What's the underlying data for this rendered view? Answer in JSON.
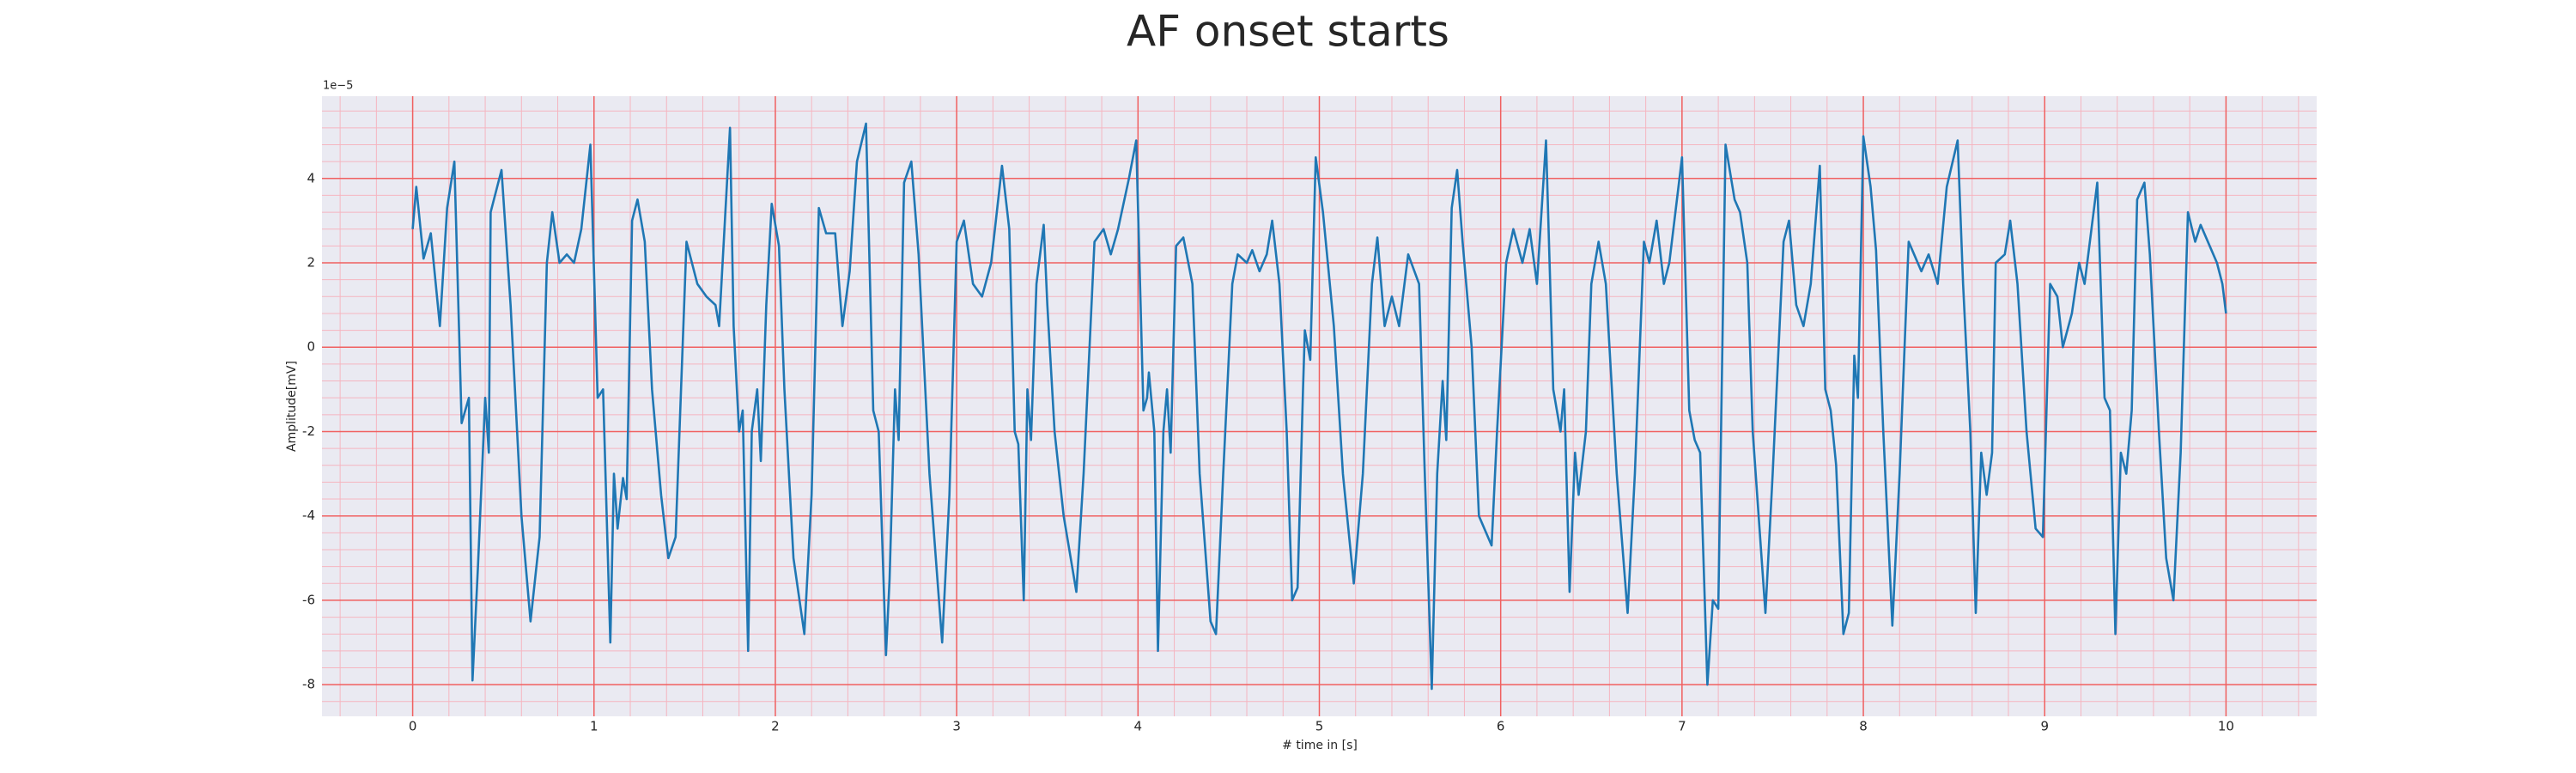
{
  "chart_data": {
    "type": "line",
    "title": "AF onset starts",
    "xlabel": "# time in [s]",
    "ylabel": "Amplitude[mV]",
    "y_offset_label": "1e−5",
    "xlim": [
      -0.5,
      10.5
    ],
    "ylim": [
      -8.75,
      5.95
    ],
    "xticks": [
      0,
      1,
      2,
      3,
      4,
      5,
      6,
      7,
      8,
      9,
      10
    ],
    "yticks": [
      -8,
      -6,
      -4,
      -2,
      0,
      2,
      4
    ],
    "grid": true,
    "minor_grid": {
      "x": 0.2,
      "y": 0.4
    },
    "x": [
      0,
      0.02,
      0.06,
      0.1,
      0.15,
      0.19,
      0.23,
      0.27,
      0.31,
      0.33,
      0.36,
      0.4,
      0.42,
      0.43,
      0.49,
      0.54,
      0.6,
      0.65,
      0.7,
      0.74,
      0.77,
      0.81,
      0.85,
      0.89,
      0.93,
      0.98,
      1.02,
      1.05,
      1.09,
      1.11,
      1.13,
      1.16,
      1.18,
      1.21,
      1.24,
      1.28,
      1.32,
      1.37,
      1.41,
      1.45,
      1.51,
      1.57,
      1.62,
      1.67,
      1.69,
      1.75,
      1.77,
      1.8,
      1.82,
      1.85,
      1.87,
      1.9,
      1.92,
      1.95,
      1.98,
      2.02,
      2.05,
      2.1,
      2.16,
      2.2,
      2.24,
      2.28,
      2.33,
      2.37,
      2.41,
      2.45,
      2.5,
      2.54,
      2.57,
      2.61,
      2.63,
      2.66,
      2.68,
      2.71,
      2.75,
      2.79,
      2.85,
      2.92,
      2.96,
      3.0,
      3.04,
      3.09,
      3.14,
      3.19,
      3.25,
      3.29,
      3.32,
      3.34,
      3.37,
      3.39,
      3.41,
      3.44,
      3.48,
      3.5,
      3.54,
      3.59,
      3.66,
      3.7,
      3.76,
      3.81,
      3.85,
      3.89,
      3.95,
      3.99,
      4.03,
      4.05,
      4.06,
      4.09,
      4.11,
      4.14,
      4.16,
      4.18,
      4.21,
      4.25,
      4.3,
      4.34,
      4.4,
      4.43,
      4.47,
      4.52,
      4.55,
      4.6,
      4.63,
      4.67,
      4.71,
      4.74,
      4.78,
      4.82,
      4.85,
      4.88,
      4.91,
      4.92,
      4.95,
      4.98,
      5.02,
      5.08,
      5.13,
      5.19,
      5.24,
      5.29,
      5.32,
      5.36,
      5.4,
      5.44,
      5.49,
      5.55,
      5.58,
      5.62,
      5.65,
      5.68,
      5.7,
      5.73,
      5.76,
      5.79,
      5.84,
      5.88,
      5.95,
      5.98,
      6.03,
      6.07,
      6.12,
      6.16,
      6.2,
      6.25,
      6.29,
      6.33,
      6.35,
      6.38,
      6.41,
      6.43,
      6.47,
      6.5,
      6.54,
      6.58,
      6.64,
      6.7,
      6.74,
      6.79,
      6.82,
      6.86,
      6.9,
      6.93,
      7.0,
      7.04,
      7.07,
      7.1,
      7.14,
      7.17,
      7.2,
      7.24,
      7.29,
      7.32,
      7.36,
      7.39,
      7.46,
      7.5,
      7.56,
      7.59,
      7.63,
      7.67,
      7.71,
      7.76,
      7.79,
      7.82,
      7.85,
      7.89,
      7.92,
      7.95,
      7.97,
      8.0,
      8.04,
      8.07,
      8.11,
      8.16,
      8.2,
      8.25,
      8.28,
      8.32,
      8.36,
      8.41,
      8.46,
      8.52,
      8.55,
      8.59,
      8.62,
      8.65,
      8.68,
      8.71,
      8.73,
      8.78,
      8.81,
      8.85,
      8.9,
      8.95,
      8.99,
      9.03,
      9.07,
      9.1,
      9.15,
      9.19,
      9.22,
      9.29,
      9.33,
      9.36,
      9.39,
      9.42,
      9.45,
      9.48,
      9.51,
      9.55,
      9.58,
      9.63,
      9.67,
      9.71,
      9.75,
      9.79,
      9.83,
      9.86,
      9.9,
      9.95,
      9.98,
      10.0
    ],
    "series": [
      {
        "name": "Amplitude",
        "color": "#1f77b4",
        "values": [
          2.8,
          3.8,
          2.1,
          2.7,
          0.5,
          3.3,
          4.4,
          -1.8,
          -1.2,
          -7.9,
          -5.2,
          -1.2,
          -2.5,
          3.2,
          4.2,
          1.0,
          -4,
          -6.5,
          -4.5,
          2,
          3.2,
          2.0,
          2.2,
          2.0,
          2.8,
          4.8,
          -1.2,
          -1.0,
          -7.0,
          -3.0,
          -4.3,
          -3.1,
          -3.6,
          3.0,
          3.5,
          2.5,
          -1,
          -3.5,
          -5.0,
          -4.5,
          2.5,
          1.5,
          1.2,
          1.0,
          0.5,
          5.2,
          0.5,
          -2.0,
          -1.5,
          -7.2,
          -2,
          -1,
          -2.7,
          1,
          3.4,
          2.4,
          -1,
          -5,
          -6.8,
          -3.5,
          3.3,
          2.7,
          2.7,
          0.5,
          1.8,
          4.4,
          5.3,
          -1.5,
          -2.0,
          -7.3,
          -5.5,
          -1,
          -2.2,
          3.9,
          4.4,
          2.2,
          -3,
          -7.0,
          -3.5,
          2.5,
          3.0,
          1.5,
          1.2,
          2,
          4.3,
          2.8,
          -2,
          -2.3,
          -6.0,
          -1,
          -2.2,
          1.5,
          2.9,
          1.0,
          -2,
          -4,
          -5.8,
          -3,
          2.5,
          2.8,
          2.2,
          2.8,
          4.0,
          4.9,
          -1.5,
          -1.2,
          -0.6,
          -2,
          -7.2,
          -2,
          -1,
          -2.5,
          2.4,
          2.6,
          1.5,
          -3,
          -6.5,
          -6.8,
          -3,
          1.5,
          2.2,
          2.0,
          2.3,
          1.8,
          2.2,
          3,
          1.5,
          -2,
          -6,
          -5.7,
          -1,
          0.4,
          -0.3,
          4.5,
          3.2,
          0.5,
          -3,
          -5.6,
          -3,
          1.5,
          2.6,
          0.5,
          1.2,
          0.5,
          2.2,
          1.5,
          -2.8,
          -8.1,
          -3,
          -0.8,
          -2.2,
          3.3,
          4.2,
          2.5,
          0,
          -4,
          -4.7,
          -2,
          2.0,
          2.8,
          2.0,
          2.8,
          1.5,
          4.9,
          -1,
          -2,
          -1,
          -5.8,
          -2.5,
          -3.5,
          -2,
          1.5,
          2.5,
          1.5,
          -3,
          -6.3,
          -3,
          2.5,
          2.0,
          3.0,
          1.5,
          2.0,
          4.5,
          -1.5,
          -2.2,
          -2.5,
          -8.0,
          -6,
          -6.2,
          4.8,
          3.5,
          3.2,
          2.0,
          -2,
          -6.3,
          -3,
          2.5,
          3.0,
          1,
          0.5,
          1.5,
          4.3,
          -1,
          -1.5,
          -2.8,
          -6.8,
          -6.3,
          -0.2,
          -1.2,
          5.0,
          3.8,
          2.3,
          -2,
          -6.6,
          -3,
          2.5,
          2.2,
          1.8,
          2.2,
          1.5,
          3.8,
          4.9,
          1.5,
          -2,
          -6.3,
          -2.5,
          -3.5,
          -2.5,
          2.0,
          2.2,
          3.0,
          1.5,
          -2,
          -4.3,
          -4.5,
          1.5,
          1.2,
          0,
          0.8,
          2.0,
          1.5,
          3.9,
          -1.2,
          -1.5,
          -6.8,
          -2.5,
          -3,
          -1.5,
          3.5,
          3.9,
          2.2,
          -2,
          -5,
          -6.0,
          -2.5,
          3.2,
          2.5,
          2.9,
          2.5,
          2.0,
          1.5,
          0.8
        ]
      }
    ]
  }
}
